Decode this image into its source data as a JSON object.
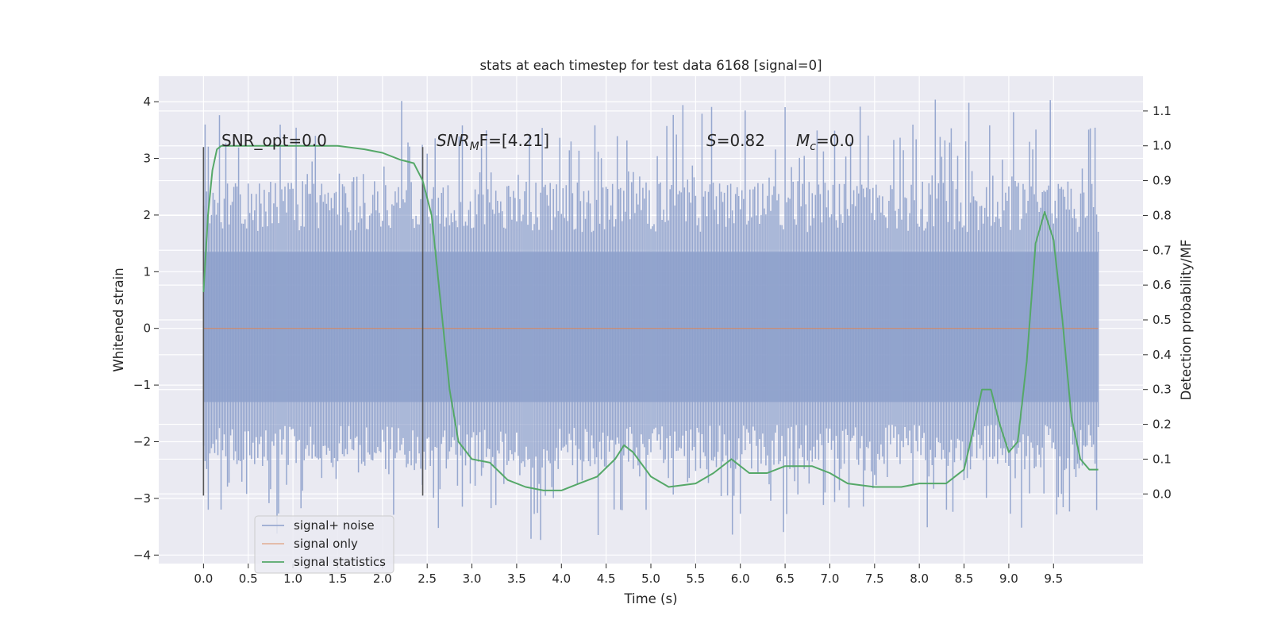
{
  "chart_data": {
    "type": "line",
    "title": "stats at each timestep for test data 6168 [signal=0]",
    "xlabel": "Time (s)",
    "ylabel": "Whitened strain",
    "ylabel_right": "Detection probability/MF",
    "xlim": [
      -0.5,
      10.5
    ],
    "ylim": [
      -4.15,
      4.45
    ],
    "ylim_right": [
      -0.2,
      1.2
    ],
    "x_ticks": [
      "0.0",
      "0.5",
      "1.0",
      "1.5",
      "2.0",
      "2.5",
      "3.0",
      "3.5",
      "4.0",
      "4.5",
      "5.0",
      "5.5",
      "6.0",
      "6.5",
      "7.0",
      "7.5",
      "8.0",
      "8.5",
      "9.0",
      "9.5"
    ],
    "y_ticks": [
      "−4",
      "−3",
      "−2",
      "−1",
      "0",
      "1",
      "2",
      "3",
      "4"
    ],
    "y_ticks_right": [
      "0.0",
      "0.1",
      "0.2",
      "0.3",
      "0.4",
      "0.5",
      "0.6",
      "0.7",
      "0.8",
      "0.9",
      "1.0",
      "1.1"
    ],
    "grid": true,
    "legend_position": "bottom-left",
    "colors": {
      "signal_noise": "#8da0cb",
      "signal_only": "#dd8452",
      "signal_statistics": "#55a868",
      "marker": "#555555",
      "background": "#eaeaf2"
    },
    "series": [
      {
        "name": "signal+ noise",
        "axis": "left",
        "description_of_values": "noise band",
        "x_range": [
          0.0,
          10.0
        ],
        "band_core": [
          -1.3,
          1.35
        ],
        "envelope_extremes": [
          -3.8,
          4.05
        ]
      },
      {
        "name": "signal only",
        "axis": "left",
        "x": [
          0.0,
          10.0
        ],
        "y": [
          0.0,
          0.0
        ]
      },
      {
        "name": "signal statistics",
        "axis": "right",
        "x": [
          0.0,
          0.05,
          0.1,
          0.15,
          0.2,
          0.3,
          0.5,
          1.0,
          1.5,
          1.8,
          2.0,
          2.2,
          2.35,
          2.45,
          2.55,
          2.65,
          2.75,
          2.85,
          3.0,
          3.2,
          3.4,
          3.6,
          3.8,
          4.0,
          4.2,
          4.4,
          4.6,
          4.7,
          4.8,
          5.0,
          5.2,
          5.5,
          5.7,
          5.9,
          6.0,
          6.1,
          6.3,
          6.5,
          6.8,
          7.0,
          7.2,
          7.5,
          7.8,
          8.0,
          8.3,
          8.5,
          8.6,
          8.7,
          8.8,
          8.9,
          9.0,
          9.1,
          9.2,
          9.3,
          9.4,
          9.5,
          9.6,
          9.7,
          9.8,
          9.9,
          10.0
        ],
        "y": [
          0.58,
          0.8,
          0.93,
          0.99,
          1.0,
          1.0,
          1.0,
          1.0,
          1.0,
          0.99,
          0.98,
          0.96,
          0.95,
          0.9,
          0.8,
          0.55,
          0.3,
          0.15,
          0.1,
          0.09,
          0.04,
          0.02,
          0.01,
          0.01,
          0.03,
          0.05,
          0.1,
          0.14,
          0.12,
          0.05,
          0.02,
          0.03,
          0.06,
          0.1,
          0.08,
          0.06,
          0.06,
          0.08,
          0.08,
          0.06,
          0.03,
          0.02,
          0.02,
          0.03,
          0.03,
          0.07,
          0.18,
          0.3,
          0.3,
          0.2,
          0.12,
          0.15,
          0.38,
          0.72,
          0.81,
          0.73,
          0.5,
          0.22,
          0.1,
          0.07,
          0.07
        ]
      }
    ],
    "markers": [
      {
        "x": 0.0,
        "y_from": -2.95,
        "y_to": 3.2
      },
      {
        "x": 2.45,
        "y_from": -2.95,
        "y_to": 3.2
      }
    ],
    "annotations": [
      {
        "id": "snr-opt",
        "text": "SNR_opt=0.0"
      },
      {
        "id": "snr-mf",
        "prefix": "SNR",
        "sub": "M",
        "suffix": "F=[4.21]"
      },
      {
        "id": "s",
        "prefix": "S",
        "suffix": "=0.82"
      },
      {
        "id": "mc",
        "prefix": "M",
        "sub": "c",
        "suffix": "=0.0"
      }
    ]
  }
}
